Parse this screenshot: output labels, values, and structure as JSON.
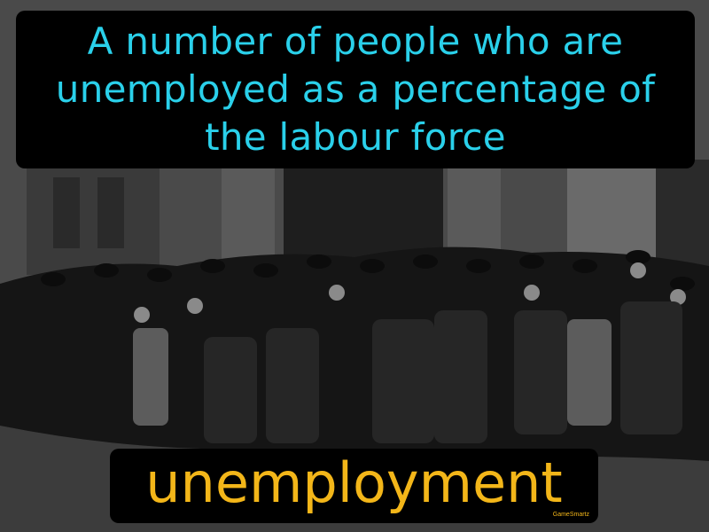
{
  "definition": {
    "text": "A number of people who are unemployed as a percentage of the labour force",
    "color": "#2ad0ea"
  },
  "term": {
    "text": "unemployment",
    "color": "#f3b619",
    "brand": "GameSmartz"
  },
  "photo": {
    "description_icon": "crowd-photo-icon"
  }
}
